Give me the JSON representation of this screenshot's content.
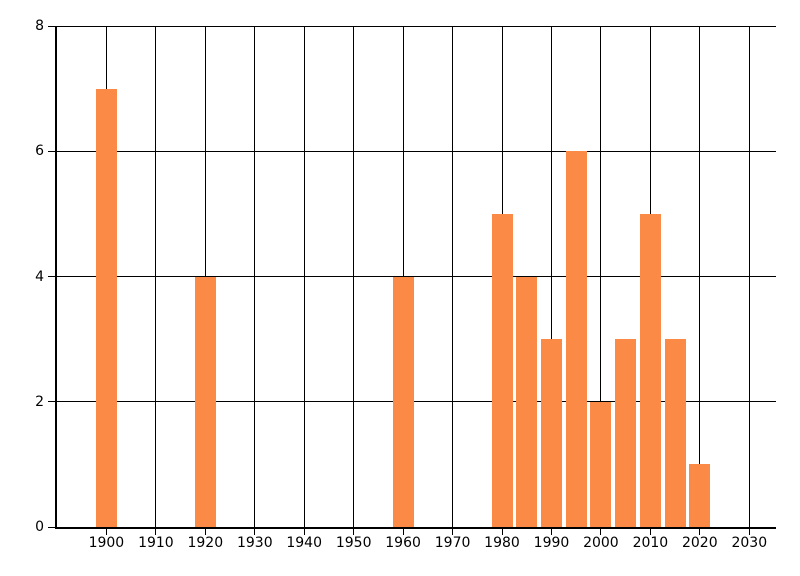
{
  "chart_data": {
    "type": "bar",
    "title": "",
    "xlabel": "",
    "ylabel": "",
    "legend": "none",
    "grid": true,
    "points": [
      {
        "x": 1900,
        "y": 7
      },
      {
        "x": 1920,
        "y": 4
      },
      {
        "x": 1960,
        "y": 4
      },
      {
        "x": 1980,
        "y": 5
      },
      {
        "x": 1985,
        "y": 4
      },
      {
        "x": 1990,
        "y": 3
      },
      {
        "x": 1995,
        "y": 6
      },
      {
        "x": 2000,
        "y": 2
      },
      {
        "x": 2005,
        "y": 3
      },
      {
        "x": 2010,
        "y": 5
      },
      {
        "x": 2015,
        "y": 3
      },
      {
        "x": 2020,
        "y": 1
      }
    ],
    "x_ticks": [
      1900,
      1910,
      1920,
      1930,
      1940,
      1950,
      1960,
      1970,
      1980,
      1990,
      2000,
      2010,
      2020,
      2030
    ],
    "y_ticks": [
      0,
      2,
      4,
      6,
      8
    ],
    "xlim": [
      1890,
      2035.4
    ],
    "ylim": [
      0,
      8
    ],
    "bar_width_years": 4.25,
    "colors": {
      "bar": "#FB8A47",
      "grid": "#000000",
      "axis": "#000000",
      "tick_label": "#000000",
      "background": "#FFFFFF"
    }
  }
}
